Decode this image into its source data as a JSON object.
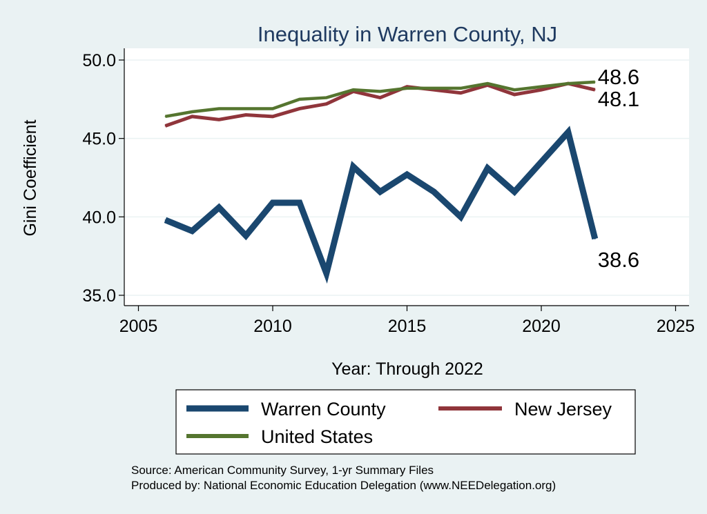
{
  "chart_data": {
    "type": "line",
    "title": "Inequality in Warren County, NJ",
    "xlabel": "Year: Through 2022",
    "ylabel": "Gini Coefficient",
    "xlim": [
      2005,
      2025
    ],
    "ylim": [
      35,
      50
    ],
    "xticks": [
      2005,
      2010,
      2015,
      2020,
      2025
    ],
    "xtick_labels": [
      "2005",
      "2010",
      "2015",
      "2020",
      "2025"
    ],
    "yticks": [
      35,
      40,
      45,
      50
    ],
    "ytick_labels": [
      "35.0",
      "40.0",
      "45.0",
      "50.0"
    ],
    "grid": true,
    "legend_position": "bottom",
    "x": [
      2006,
      2007,
      2008,
      2009,
      2010,
      2011,
      2012,
      2013,
      2014,
      2015,
      2016,
      2017,
      2018,
      2019,
      2020,
      2021,
      2022
    ],
    "series": [
      {
        "name": "Warren County",
        "color": "#1a476f",
        "values": [
          39.8,
          39.1,
          40.6,
          38.8,
          40.9,
          40.9,
          36.4,
          43.2,
          41.6,
          42.7,
          41.6,
          40.0,
          43.1,
          41.6,
          43.5,
          45.4,
          38.6
        ],
        "end_label": "38.6"
      },
      {
        "name": "New Jersey",
        "color": "#90353b",
        "values": [
          45.8,
          46.4,
          46.2,
          46.5,
          46.4,
          46.9,
          47.2,
          48.0,
          47.6,
          48.3,
          48.1,
          47.9,
          48.4,
          47.8,
          48.1,
          48.5,
          48.1
        ],
        "end_label": "48.1"
      },
      {
        "name": "United States",
        "color": "#55752f",
        "values": [
          46.4,
          46.7,
          46.9,
          46.9,
          46.9,
          47.5,
          47.6,
          48.1,
          48.0,
          48.2,
          48.2,
          48.2,
          48.5,
          48.1,
          48.3,
          48.5,
          48.6
        ],
        "end_label": "48.6"
      }
    ],
    "notes": [
      "Source: American Community Survey, 1-yr Summary Files",
      "Produced by: National Economic Education Delegation (www.NEEDelegation.org)"
    ]
  }
}
